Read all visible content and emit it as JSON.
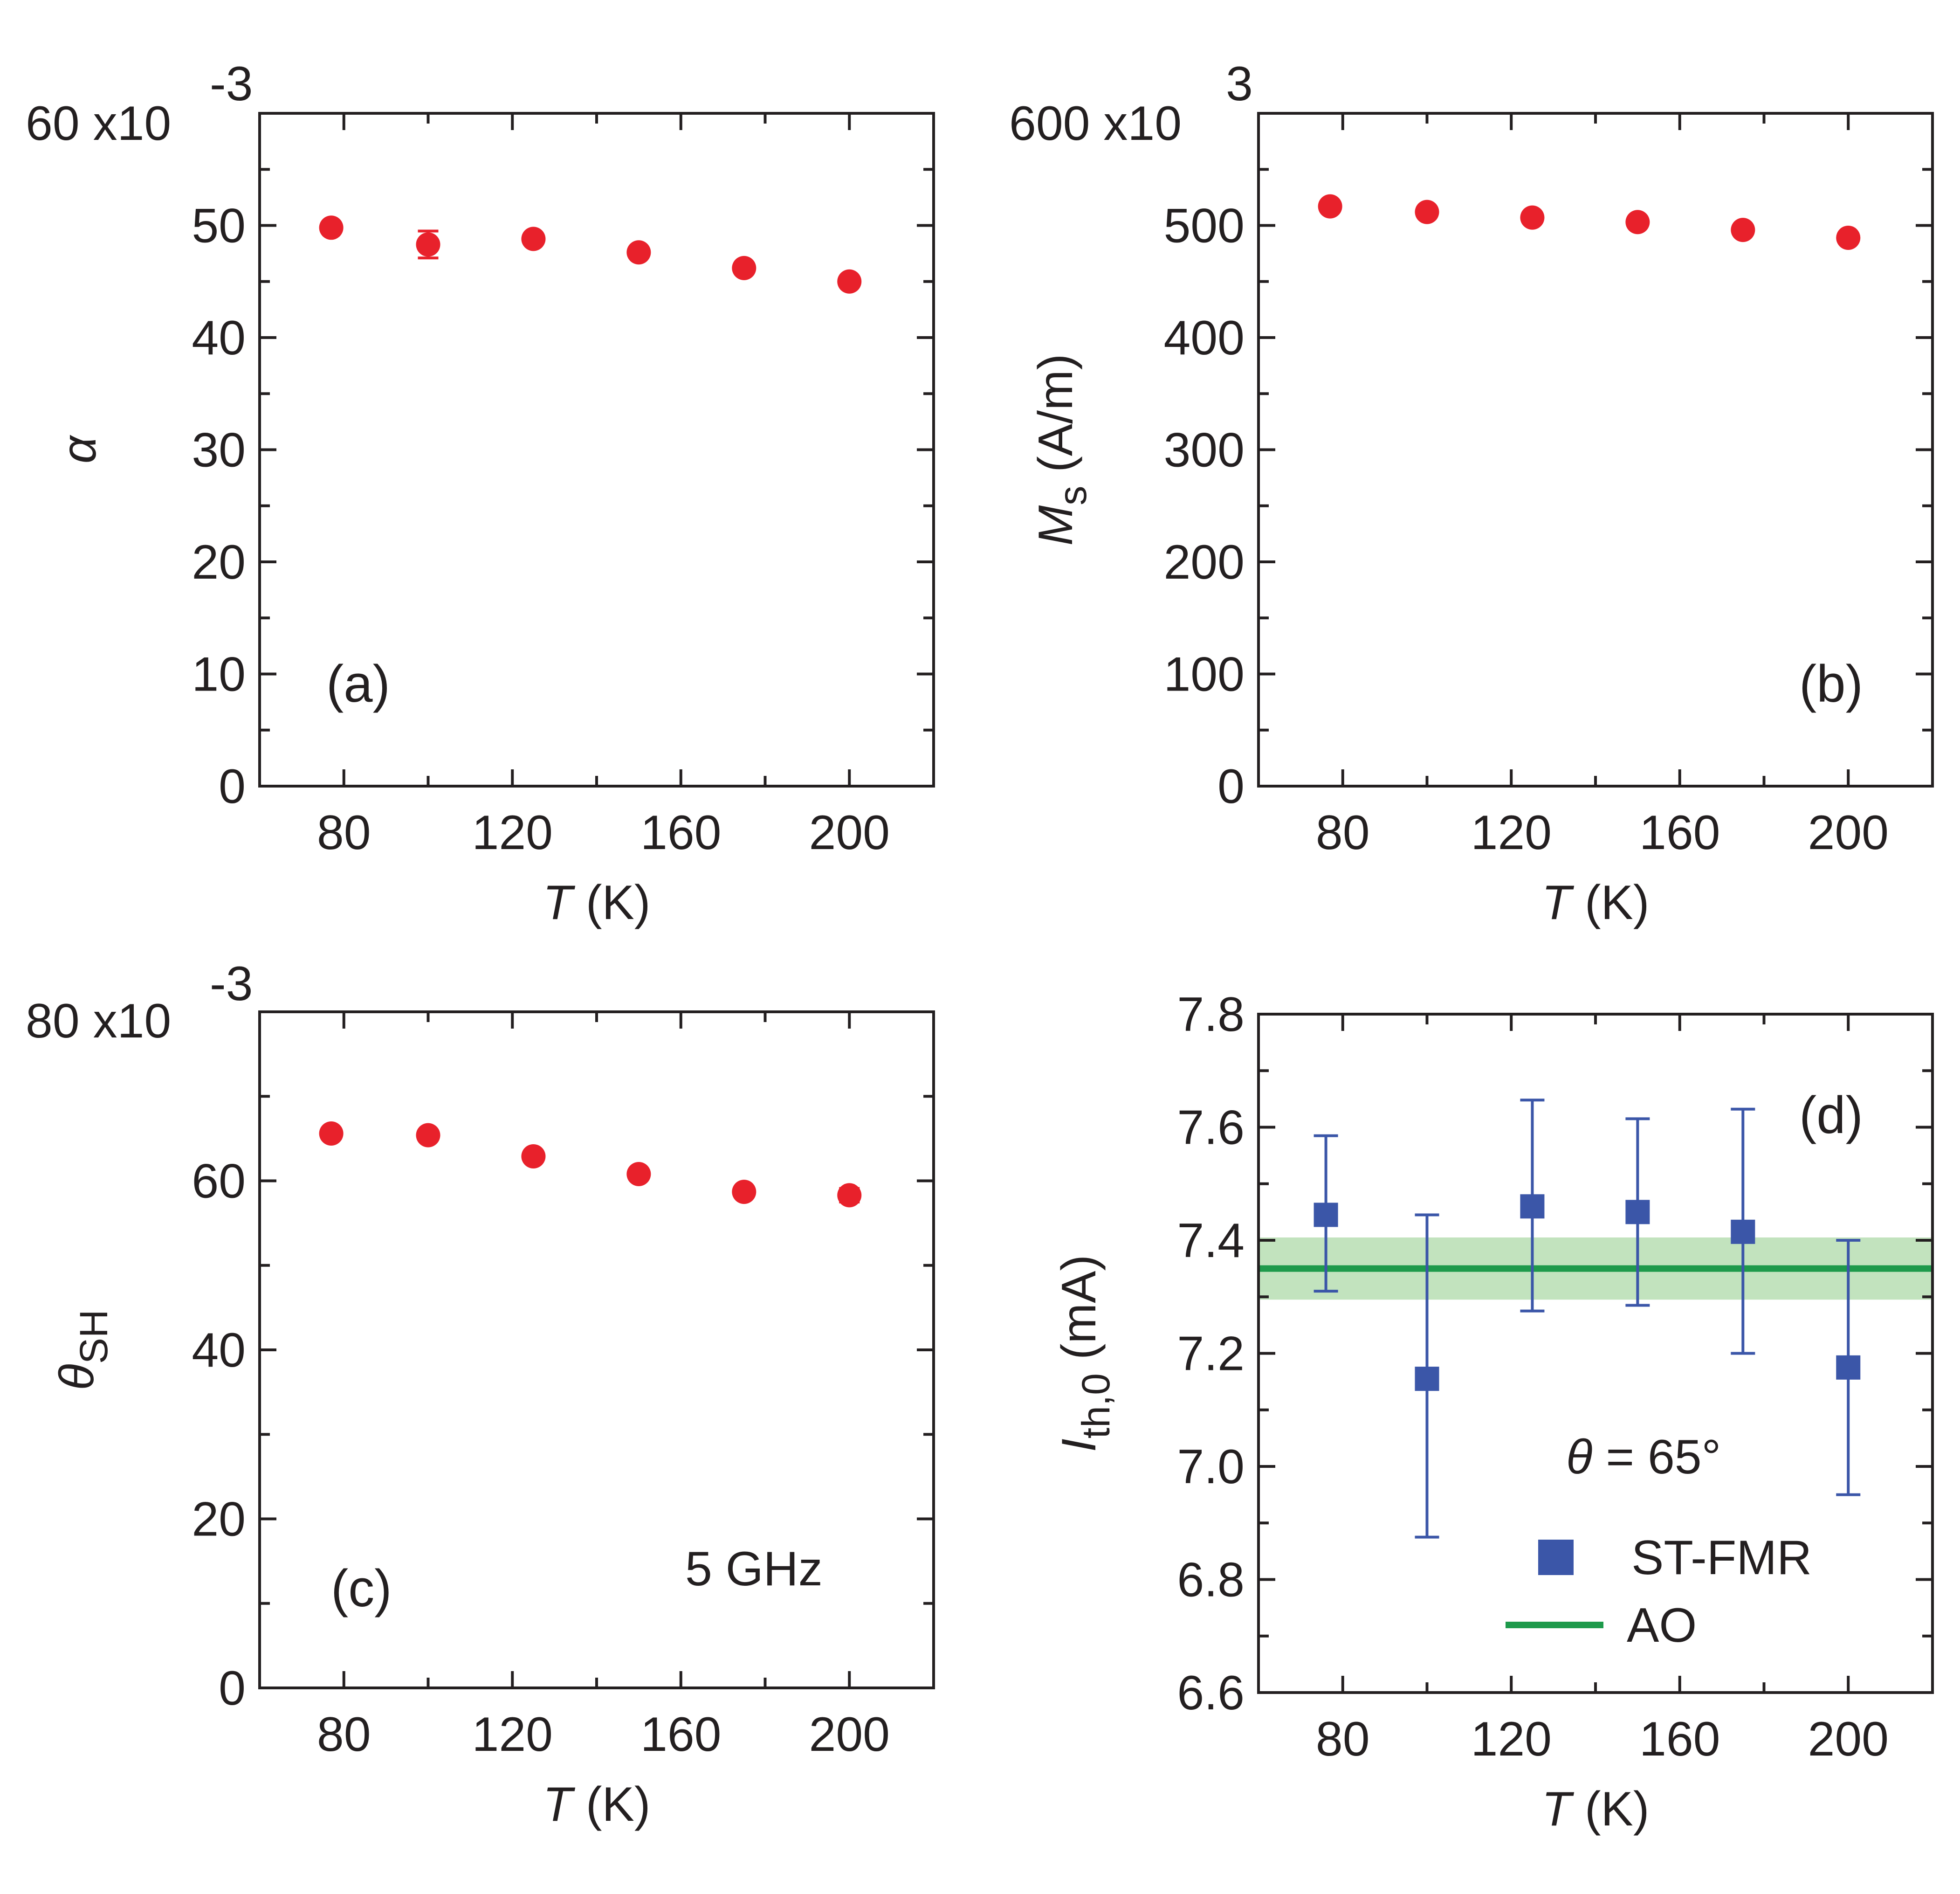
{
  "chart_data": [
    {
      "id": "a",
      "type": "scatter",
      "panel_label": "(a)",
      "xlabel_var": "T",
      "xlabel_unit": "(K)",
      "ylabel": "α",
      "ylabel_sub": "",
      "ylabel_unit": "",
      "y_multiplier": "x10",
      "y_multiplier_top": "60",
      "y_exponent": "-3",
      "xlim": [
        60,
        220
      ],
      "ylim": [
        0,
        60
      ],
      "xticks": [
        80,
        120,
        160,
        200
      ],
      "xtick_labels": [
        "80",
        "120",
        "160",
        "200"
      ],
      "yticks": [
        0,
        10,
        20,
        30,
        40,
        50
      ],
      "ytick_labels": [
        "0",
        "10",
        "20",
        "30",
        "40",
        "50"
      ],
      "series": [
        {
          "name": "alpha",
          "color": "#e8212b",
          "marker": "circle",
          "points": [
            {
              "x": 77,
              "y": 49.8,
              "err": 0.4
            },
            {
              "x": 100,
              "y": 48.3,
              "err": 1.2
            },
            {
              "x": 125,
              "y": 48.8,
              "err": 0.4
            },
            {
              "x": 150,
              "y": 47.6,
              "err": 0.4
            },
            {
              "x": 175,
              "y": 46.2,
              "err": 0.4
            },
            {
              "x": 200,
              "y": 45.0,
              "err": 0.4
            }
          ]
        }
      ]
    },
    {
      "id": "b",
      "type": "scatter",
      "panel_label": "(b)",
      "xlabel_var": "T",
      "xlabel_unit": "(K)",
      "ylabel": "M",
      "ylabel_sub": "s",
      "ylabel_unit": "(A/m)",
      "y_multiplier": "x10",
      "y_multiplier_top": "600",
      "y_exponent": "3",
      "xlim": [
        60,
        220
      ],
      "ylim": [
        0,
        600
      ],
      "xticks": [
        80,
        120,
        160,
        200
      ],
      "xtick_labels": [
        "80",
        "120",
        "160",
        "200"
      ],
      "yticks": [
        0,
        100,
        200,
        300,
        400,
        500
      ],
      "ytick_labels": [
        "0",
        "100",
        "200",
        "300",
        "400",
        "500"
      ],
      "series": [
        {
          "name": "Ms",
          "color": "#e8212b",
          "marker": "circle",
          "points": [
            {
              "x": 77,
              "y": 517
            },
            {
              "x": 100,
              "y": 512
            },
            {
              "x": 125,
              "y": 507
            },
            {
              "x": 150,
              "y": 503
            },
            {
              "x": 175,
              "y": 496
            },
            {
              "x": 200,
              "y": 489
            }
          ]
        }
      ]
    },
    {
      "id": "c",
      "type": "scatter",
      "panel_label": "(c)",
      "annotation": "5 GHz",
      "xlabel_var": "T",
      "xlabel_unit": "(K)",
      "ylabel": "θ",
      "ylabel_sub": "SH",
      "ylabel_unit": "",
      "y_multiplier": "x10",
      "y_multiplier_top": "80",
      "y_exponent": "-3",
      "xlim": [
        60,
        220
      ],
      "ylim": [
        0,
        80
      ],
      "xticks": [
        80,
        120,
        160,
        200
      ],
      "xtick_labels": [
        "80",
        "120",
        "160",
        "200"
      ],
      "yticks": [
        0,
        20,
        40,
        60
      ],
      "ytick_labels": [
        "0",
        "20",
        "40",
        "60"
      ],
      "series": [
        {
          "name": "thetaSH",
          "color": "#e8212b",
          "marker": "circle",
          "points": [
            {
              "x": 77,
              "y": 65.6,
              "err": 0.6
            },
            {
              "x": 100,
              "y": 65.4,
              "err": 0.6
            },
            {
              "x": 125,
              "y": 62.9,
              "err": 0.6
            },
            {
              "x": 150,
              "y": 60.8,
              "err": 0.6
            },
            {
              "x": 175,
              "y": 58.7,
              "err": 0.6
            },
            {
              "x": 200,
              "y": 58.3,
              "err": 0.8
            }
          ]
        }
      ]
    },
    {
      "id": "d",
      "type": "scatter",
      "panel_label": "(d)",
      "annotation_var": "θ",
      "annotation_rest": " = 65°",
      "xlabel_var": "T",
      "xlabel_unit": "(K)",
      "ylabel": "I",
      "ylabel_sub": "th,0",
      "ylabel_unit": "(mA)",
      "xlim": [
        60,
        220
      ],
      "ylim": [
        6.6,
        7.8
      ],
      "xticks": [
        80,
        120,
        160,
        200
      ],
      "xtick_labels": [
        "80",
        "120",
        "160",
        "200"
      ],
      "yticks": [
        6.6,
        6.8,
        7.0,
        7.2,
        7.4,
        7.6,
        7.8
      ],
      "ytick_labels": [
        "6.6",
        "6.8",
        "7.0",
        "7.2",
        "7.4",
        "7.6",
        "7.8"
      ],
      "legend": [
        {
          "label": "ST-FMR",
          "kind": "square",
          "color": "#3b56a8"
        },
        {
          "label": "AO",
          "kind": "line",
          "color": "#1e9a4b"
        }
      ],
      "band": {
        "y_low": 7.295,
        "y_high": 7.405,
        "line_y": 7.35,
        "band_color": "#c2e3be",
        "line_color": "#1e9a4b"
      },
      "series": [
        {
          "name": "ST-FMR",
          "color": "#3b56a8",
          "marker": "square",
          "points": [
            {
              "x": 76,
              "y": 7.445,
              "err_low": 7.31,
              "err_high": 7.585
            },
            {
              "x": 100,
              "y": 7.155,
              "err_low": 6.875,
              "err_high": 7.445
            },
            {
              "x": 125,
              "y": 7.46,
              "err_low": 7.275,
              "err_high": 7.648
            },
            {
              "x": 150,
              "y": 7.45,
              "err_low": 7.285,
              "err_high": 7.615
            },
            {
              "x": 175,
              "y": 7.415,
              "err_low": 7.2,
              "err_high": 7.632
            },
            {
              "x": 200,
              "y": 7.175,
              "err_low": 6.95,
              "err_high": 7.4
            }
          ]
        }
      ]
    }
  ]
}
